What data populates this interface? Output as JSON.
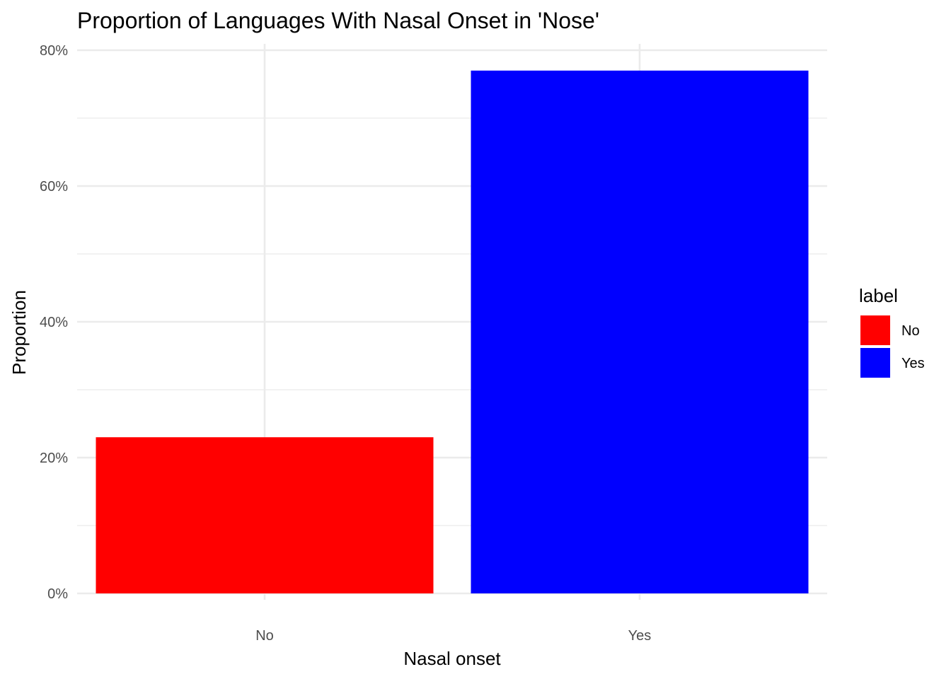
{
  "chart_data": {
    "type": "bar",
    "title": "Proportion of Languages With Nasal Onset in 'Nose'",
    "xlabel": "Nasal onset",
    "ylabel": "Proportion",
    "categories": [
      "No",
      "Yes"
    ],
    "values": [
      0.23,
      0.77
    ],
    "colors": [
      "#ff0000",
      "#0000ff"
    ],
    "ylim": [
      0,
      0.8
    ],
    "y_ticks": [
      0,
      0.2,
      0.4,
      0.6,
      0.8
    ],
    "y_tick_labels": [
      "0%",
      "20%",
      "40%",
      "60%",
      "80%"
    ],
    "grid": true,
    "legend": {
      "title": "label",
      "position": "right",
      "entries": [
        {
          "label": "No",
          "color": "#ff0000"
        },
        {
          "label": "Yes",
          "color": "#0000ff"
        }
      ]
    }
  }
}
